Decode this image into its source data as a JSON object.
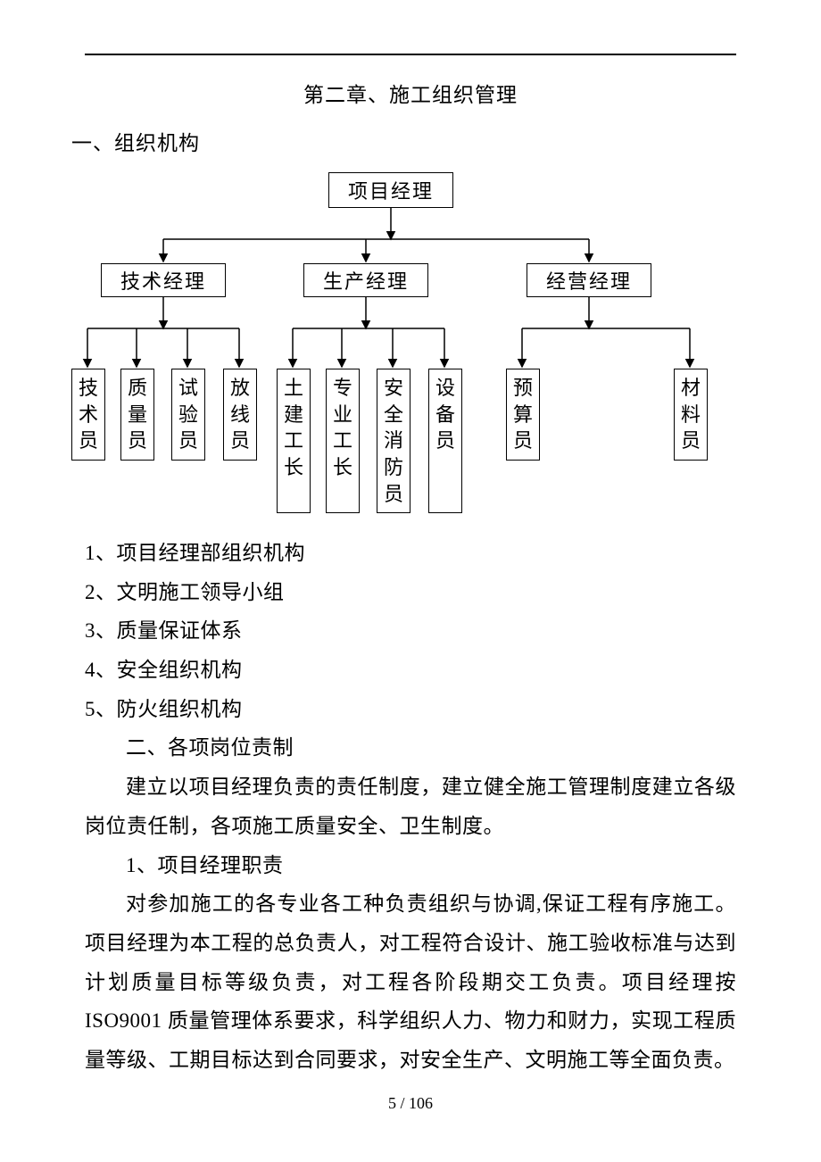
{
  "chapter_title": "第二章、施工组织管理",
  "section_1_title": "一、组织机构",
  "org_chart": {
    "root": "项目经理",
    "managers": [
      "技术经理",
      "生产经理",
      "经营经理"
    ],
    "group1": [
      "技术员",
      "质量员",
      "试验员",
      "放线员"
    ],
    "group2": [
      "土建工长",
      "专业工长",
      "安全消防员",
      "设备员"
    ],
    "group3": [
      "预算员",
      "材料员"
    ],
    "border_color": "#000000",
    "background_color": "#ffffff",
    "font_size": 22
  },
  "list_items": [
    "1、项目经理部组织机构",
    "2、文明施工领导小组",
    "3、质量保证体系",
    "4、安全组织机构",
    "5、防火组织机构"
  ],
  "section_2_title": "二、各项岗位责制",
  "intro_paragraph": "建立以项目经理负责的责任制度，建立健全施工管理制度建立各级岗位责任制，各项施工质量安全、卫生制度。",
  "duty_heading": "1、项目经理职责",
  "duty_paragraph": "对参加施工的各专业各工种负责组织与协调,保证工程有序施工。项目经理为本工程的总负责人，对工程符合设计、施工验收标准与达到计划质量目标等级负责，对工程各阶段期交工负责。项目经理按ISO9001 质量管理体系要求，科学组织人力、物力和财力，实现工程质量等级、工期目标达到合同要求，对安全生产、文明施工等全面负责。",
  "page_number": "5 / 106",
  "connectors": {
    "stroke": "#000000",
    "stroke_width": 1.5,
    "arrow_size": 7
  }
}
